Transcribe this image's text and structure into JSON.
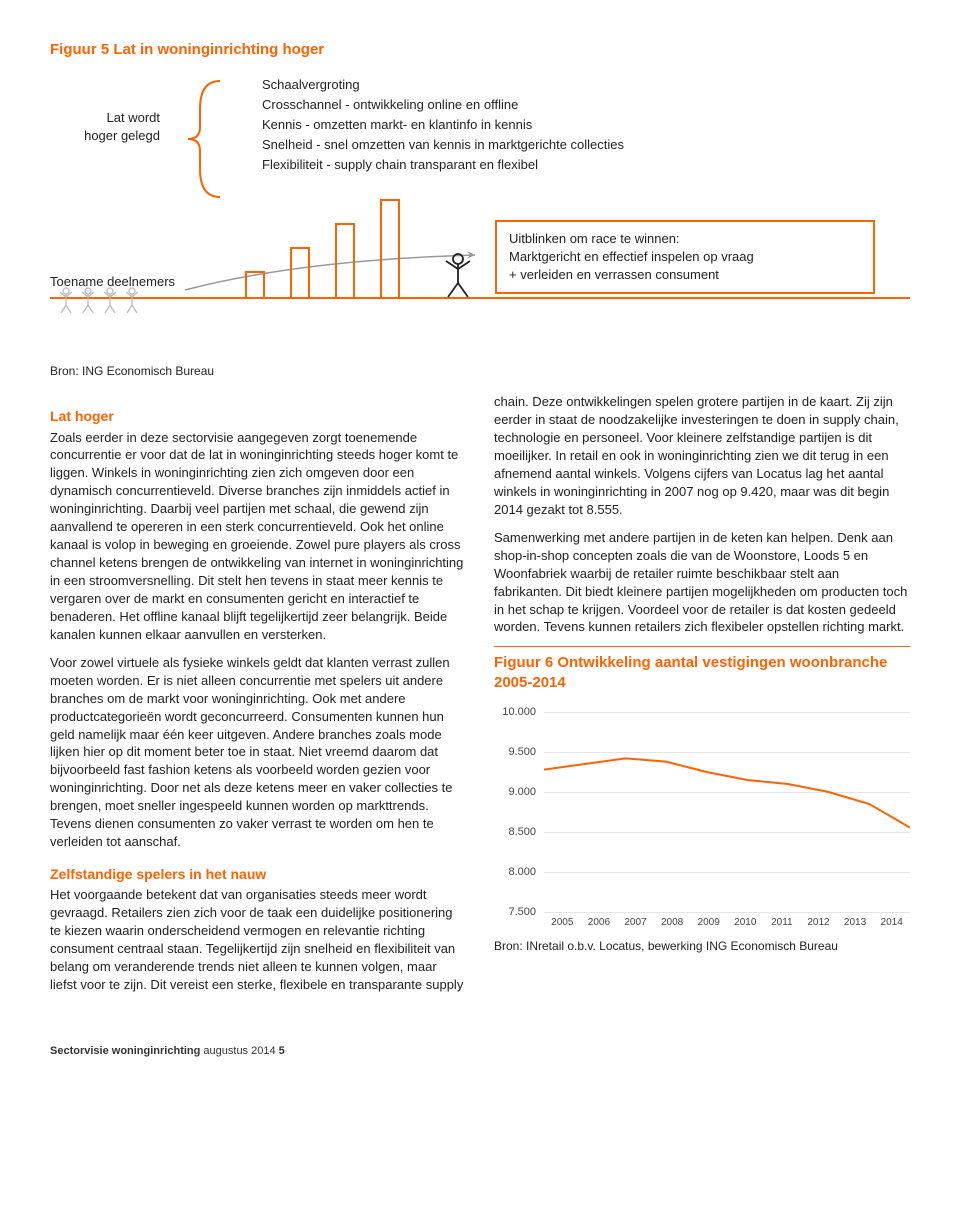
{
  "figure5": {
    "title": "Figuur 5 Lat in woninginrichting hoger",
    "lat_label_l1": "Lat wordt",
    "lat_label_l2": "hoger gelegd",
    "bullets": [
      "Schaalvergroting",
      "Crosschannel - ontwikkeling online en offline",
      "Kennis - omzetten markt- en klantinfo in kennis",
      "Snelheid - snel omzetten van kennis in marktgerichte collecties",
      "Flexibiliteit - supply chain transparant en flexibel"
    ],
    "toename": "Toename deelnemers",
    "winbox_l1": "Uitblinken om race te winnen:",
    "winbox_l2": "Marktgericht en effectief inspelen op vraag",
    "winbox_l3": "+ verleiden en verrassen consument",
    "source": "Bron: ING Economisch Bureau"
  },
  "left_col": {
    "h1": "Lat hoger",
    "p1": "Zoals eerder in deze sectorvisie aangegeven zorgt toenemende concurrentie er voor dat de lat in woninginrichting steeds hoger komt te liggen. Winkels in woninginrichting zien zich omgeven door een dynamisch concurrentieveld. Diverse branches zijn inmiddels actief in woninginrichting. Daarbij veel partijen met schaal, die gewend zijn aanvallend te opereren in een sterk concurrentieveld. Ook het online kanaal is volop in beweging en groeiende. Zowel pure players als cross channel ketens brengen de ontwikkeling van internet in woninginrichting in een stroomversnelling. Dit stelt hen tevens in staat meer kennis te vergaren over de markt en consumenten gericht en interactief te benaderen. Het offline kanaal blijft tegelijkertijd zeer belangrijk. Beide kanalen kunnen elkaar aanvullen en versterken.",
    "p2": "Voor zowel virtuele als fysieke winkels geldt dat klanten verrast zullen moeten worden. Er is niet alleen concurrentie met spelers uit andere branches om de markt voor woninginrichting. Ook met andere productcategorieën wordt geconcurreerd. Consumenten kunnen hun geld namelijk maar één keer uitgeven. Andere branches zoals mode lijken hier op dit moment beter toe in staat. Niet vreemd daarom dat bijvoorbeeld fast fashion ketens als voorbeeld worden gezien voor woninginrichting. Door net als deze ketens meer en vaker collecties te brengen, moet sneller ingespeeld kunnen worden op markttrends. Tevens dienen consumenten zo vaker verrast te worden om hen te verleiden tot aanschaf.",
    "h2": "Zelfstandige spelers in het nauw",
    "p3": "Het voorgaande betekent dat van organisaties steeds meer wordt gevraagd. Retailers zien zich voor de taak een duidelijke positionering te kiezen waarin onderscheidend vermogen en relevantie richting consument centraal staan. Tegelijkertijd zijn snelheid en flexibiliteit van belang om veranderende trends niet alleen te kunnen volgen, maar liefst voor te zijn. Dit vereist een sterke, flexibele en transparante supply"
  },
  "right_col": {
    "p1": "chain. Deze ontwikkelingen spelen grotere partijen in de kaart. Zij zijn eerder in staat de noodzakelijke investeringen te doen in supply chain, technologie en personeel. Voor kleinere zelfstandige partijen is dit moeilijker. In retail en ook in woninginrichting zien we dit terug in een afnemend aantal winkels. Volgens cijfers van Locatus lag het aantal winkels in woninginrichting in 2007 nog op 9.420, maar was dit begin 2014 gezakt tot 8.555.",
    "p2": "Samenwerking met andere partijen in de keten kan helpen. Denk aan shop-in-shop concepten zoals die van de Woonstore, Loods 5 en Woonfabriek waarbij de retailer ruimte beschikbaar stelt aan fabrikanten. Dit biedt kleinere partijen mogelijkheden om producten toch in het schap te krijgen. Voordeel voor de retailer is dat kosten gedeeld worden. Tevens kunnen retailers zich flexibeler opstellen richting markt."
  },
  "figure6": {
    "title": "Figuur 6 Ontwikkeling aantal vestigingen woonbranche 2005-2014",
    "type": "line",
    "x": [
      "2005",
      "2006",
      "2007",
      "2008",
      "2009",
      "2010",
      "2011",
      "2012",
      "2013",
      "2014"
    ],
    "y_values": [
      9280,
      9350,
      9420,
      9380,
      9250,
      9150,
      9100,
      9000,
      8850,
      8555
    ],
    "ylim": [
      7500,
      10000
    ],
    "y_ticks": [
      "10.000",
      "9.500",
      "9.000",
      "8.500",
      "8.000",
      "7.500"
    ],
    "line_color": "#ff6200",
    "line_width": 2,
    "grid_color": "#e4e4e4",
    "background": "#ffffff",
    "source": "Bron: INretail o.b.v. Locatus, bewerking ING Economisch Bureau"
  },
  "footer": {
    "bold": "Sectorvisie woninginrichting",
    "light": " augustus 2014 ",
    "page": "5"
  }
}
